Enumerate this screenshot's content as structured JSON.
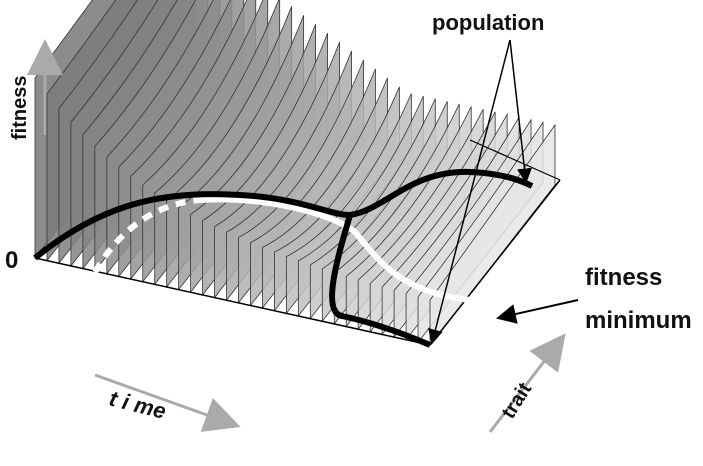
{
  "labels": {
    "population": "population",
    "fitness_axis": "fitness",
    "origin": "0",
    "fitness_minimum": [
      "fitness",
      "minimum"
    ],
    "time": "t i me",
    "trait": "trait"
  }
}
